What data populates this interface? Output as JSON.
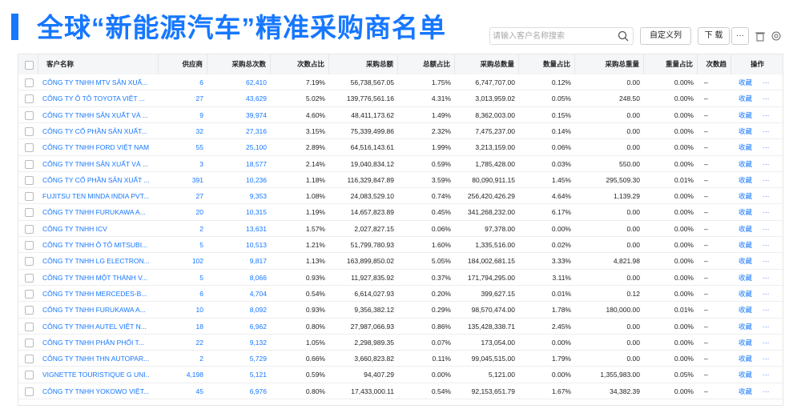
{
  "header": {
    "title": "全球“新能源汽车”精准采购商名单",
    "search_placeholder": "请输入客户名称搜索",
    "buttons": [
      "自定义列",
      "下 载"
    ]
  },
  "table": {
    "columns": [
      "客户名称",
      "供应商",
      "采购总次数",
      "次数占比",
      "采购总额",
      "总额占比",
      "采购总数量",
      "数量占比",
      "采购总重量",
      "重量占比",
      "次数趋",
      "操作"
    ],
    "row_actions": [
      "收藏",
      "···"
    ],
    "rows": [
      [
        "CÔNG TY TNHH MTV SẢN XUẤ...",
        "6",
        "62,410",
        "7.19%",
        "56,738,567.05",
        "1.75%",
        "6,747,707.00",
        "0.12%",
        "0.00",
        "0.00%",
        "–"
      ],
      [
        "CÔNG TY Ô TÔ TOYOTA VIỆT ...",
        "27",
        "43,629",
        "5.02%",
        "139,776,561.16",
        "4.31%",
        "3,013,959.02",
        "0.05%",
        "248.50",
        "0.00%",
        "–"
      ],
      [
        "CÔNG TY TNHH SẢN XUẤT VÀ ...",
        "9",
        "39,974",
        "4.60%",
        "48,411,173.62",
        "1.49%",
        "8,362,003.00",
        "0.15%",
        "0.00",
        "0.00%",
        "–"
      ],
      [
        "CÔNG TY CỔ PHẦN SẢN XUẤT...",
        "32",
        "27,316",
        "3.15%",
        "75,339,499.86",
        "2.32%",
        "7,475,237.00",
        "0.14%",
        "0.00",
        "0.00%",
        "–"
      ],
      [
        "CÔNG TY TNHH FORD VIỆT NAM",
        "55",
        "25,100",
        "2.89%",
        "64,516,143.61",
        "1.99%",
        "3,213,159.00",
        "0.06%",
        "0.00",
        "0.00%",
        "–"
      ],
      [
        "CÔNG TY TNHH SẢN XUẤT VÀ ...",
        "3",
        "18,577",
        "2.14%",
        "19,040,834.12",
        "0.59%",
        "1,785,428.00",
        "0.03%",
        "550.00",
        "0.00%",
        "–"
      ],
      [
        "CÔNG TY CỔ PHẦN SẢN XUẤT ...",
        "391",
        "10,236",
        "1.18%",
        "116,329,847.89",
        "3.59%",
        "80,090,911.15",
        "1.45%",
        "295,509.30",
        "0.01%",
        "–"
      ],
      [
        "FUJITSU TEN MINDA INDIA PVT...",
        "27",
        "9,353",
        "1.08%",
        "24,083,529.10",
        "0.74%",
        "256,420,426.29",
        "4.64%",
        "1,139.29",
        "0.00%",
        "–"
      ],
      [
        "CÔNG TY TNHH FURUKAWA A...",
        "20",
        "10,315",
        "1.19%",
        "14,657,823.89",
        "0.45%",
        "341,268,232.00",
        "6.17%",
        "0.00",
        "0.00%",
        "–"
      ],
      [
        "CÔNG TY TNHH ICV",
        "2",
        "13,631",
        "1.57%",
        "2,027,827.15",
        "0.06%",
        "97,378.00",
        "0.00%",
        "0.00",
        "0.00%",
        "–"
      ],
      [
        "CÔNG TY TNHH Ô TÔ MITSUBI...",
        "5",
        "10,513",
        "1.21%",
        "51,799,780.93",
        "1.60%",
        "1,335,516.00",
        "0.02%",
        "0.00",
        "0.00%",
        "–"
      ],
      [
        "CÔNG TY TNHH LG ELECTRON...",
        "102",
        "9,817",
        "1.13%",
        "163,899,850.02",
        "5.05%",
        "184,002,681.15",
        "3.33%",
        "4,821.98",
        "0.00%",
        "–"
      ],
      [
        "CÔNG TY TNHH MỘT THÀNH V...",
        "5",
        "8,066",
        "0.93%",
        "11,927,835.92",
        "0.37%",
        "171,794,295.00",
        "3.11%",
        "0.00",
        "0.00%",
        "–"
      ],
      [
        "CÔNG TY TNHH MERCEDES-B...",
        "6",
        "4,704",
        "0.54%",
        "6,614,027.93",
        "0.20%",
        "399,627.15",
        "0.01%",
        "0.12",
        "0.00%",
        "–"
      ],
      [
        "CÔNG TY TNHH FURUKAWA A...",
        "10",
        "8,092",
        "0.93%",
        "9,356,382.12",
        "0.29%",
        "98,570,474.00",
        "1.78%",
        "180,000.00",
        "0.01%",
        "–"
      ],
      [
        "CÔNG TY TNHH AUTEL VIỆT N...",
        "18",
        "6,962",
        "0.80%",
        "27,987,066.93",
        "0.86%",
        "135,428,338.71",
        "2.45%",
        "0.00",
        "0.00%",
        "–"
      ],
      [
        "CÔNG TY TNHH PHÂN PHỐI T...",
        "22",
        "9,132",
        "1.05%",
        "2,298,989.35",
        "0.07%",
        "173,054.00",
        "0.00%",
        "0.00",
        "0.00%",
        "–"
      ],
      [
        "CÔNG TY TNHH THN AUTOPAR...",
        "2",
        "5,729",
        "0.66%",
        "3,660,823.82",
        "0.11%",
        "99,045,515.00",
        "1.79%",
        "0.00",
        "0.00%",
        "–"
      ],
      [
        "VIGNETTE TOURISTIQUE G UNI...",
        "4,198",
        "5,121",
        "0.59%",
        "94,407.29",
        "0.00%",
        "5,121.00",
        "0.00%",
        "1,355,983.00",
        "0.05%",
        "–"
      ],
      [
        "CÔNG TY TNHH YOKOWO VIỆT...",
        "45",
        "6,976",
        "0.80%",
        "17,433,000.11",
        "0.54%",
        "92,153,651.79",
        "1.67%",
        "34,382.39",
        "0.00%",
        "–"
      ]
    ]
  }
}
